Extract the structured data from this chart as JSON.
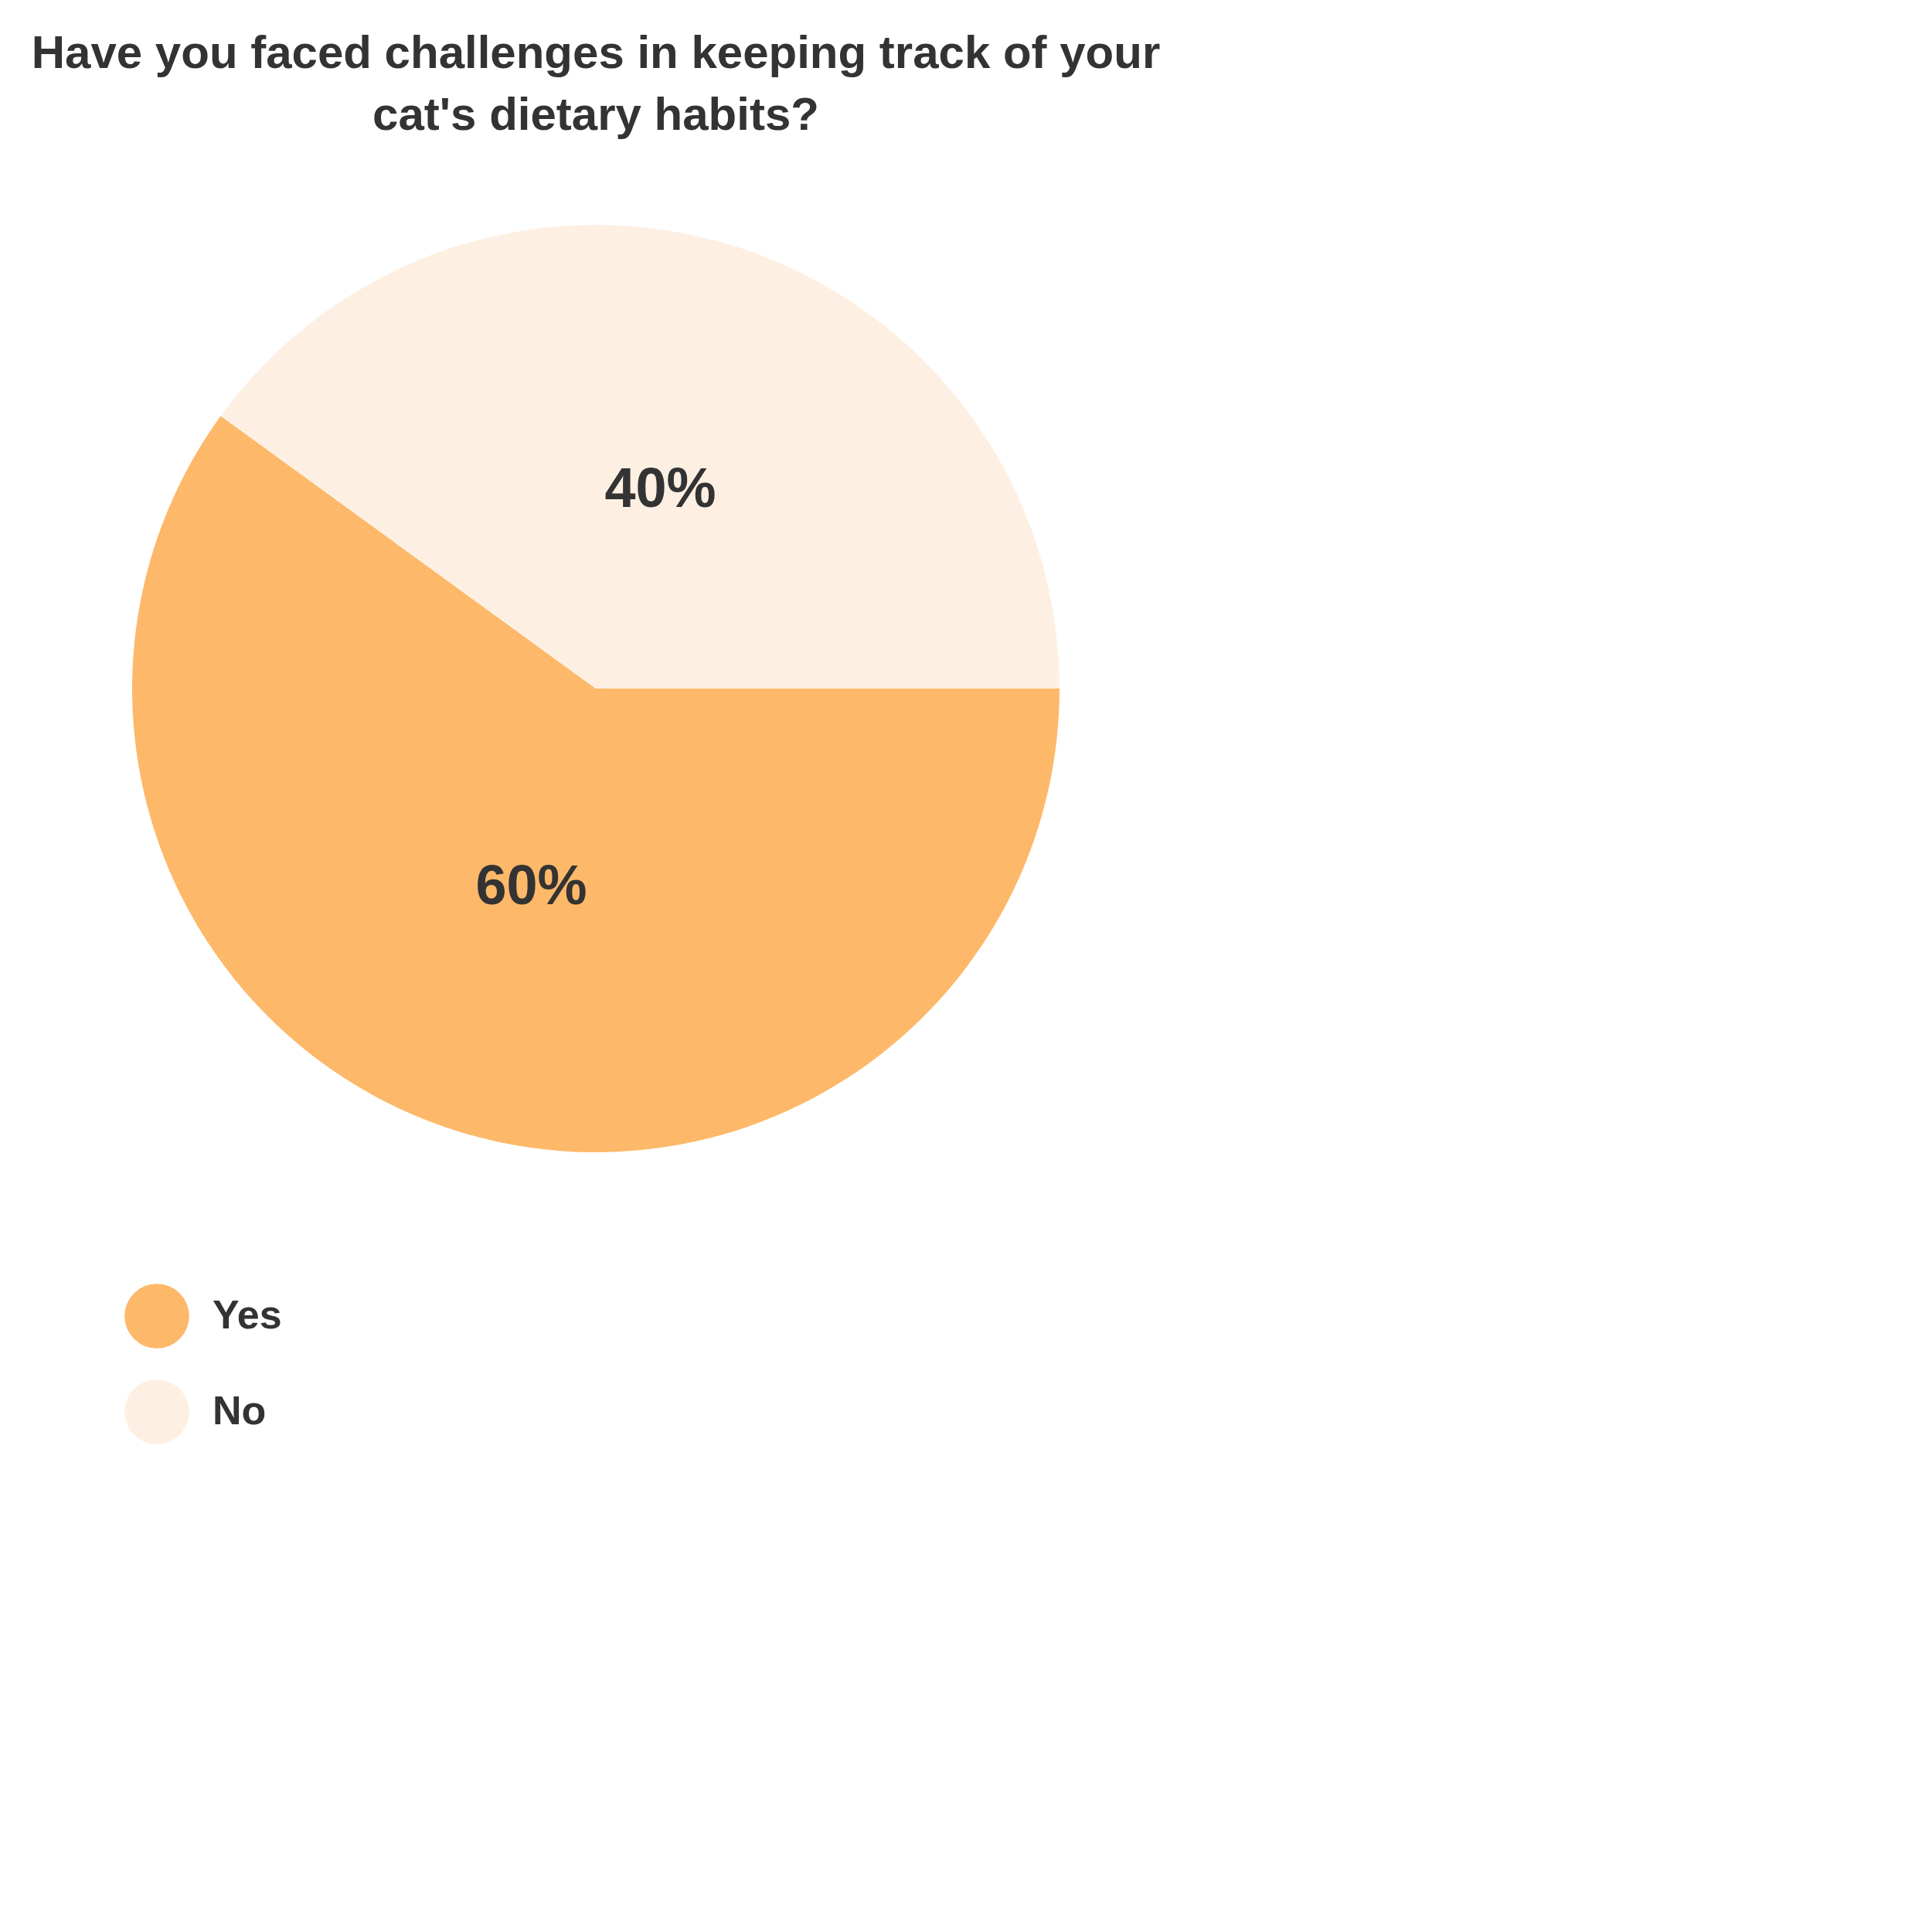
{
  "chart_data": {
    "type": "pie",
    "title": "Have you faced challenges in keeping track of your cat's dietary habits?",
    "categories": [
      "Yes",
      "No"
    ],
    "values": [
      60,
      40
    ],
    "colors": [
      "#fdb869",
      "#fdf0e3"
    ],
    "value_labels": [
      "60%",
      "40%"
    ],
    "legend": "bottom"
  }
}
